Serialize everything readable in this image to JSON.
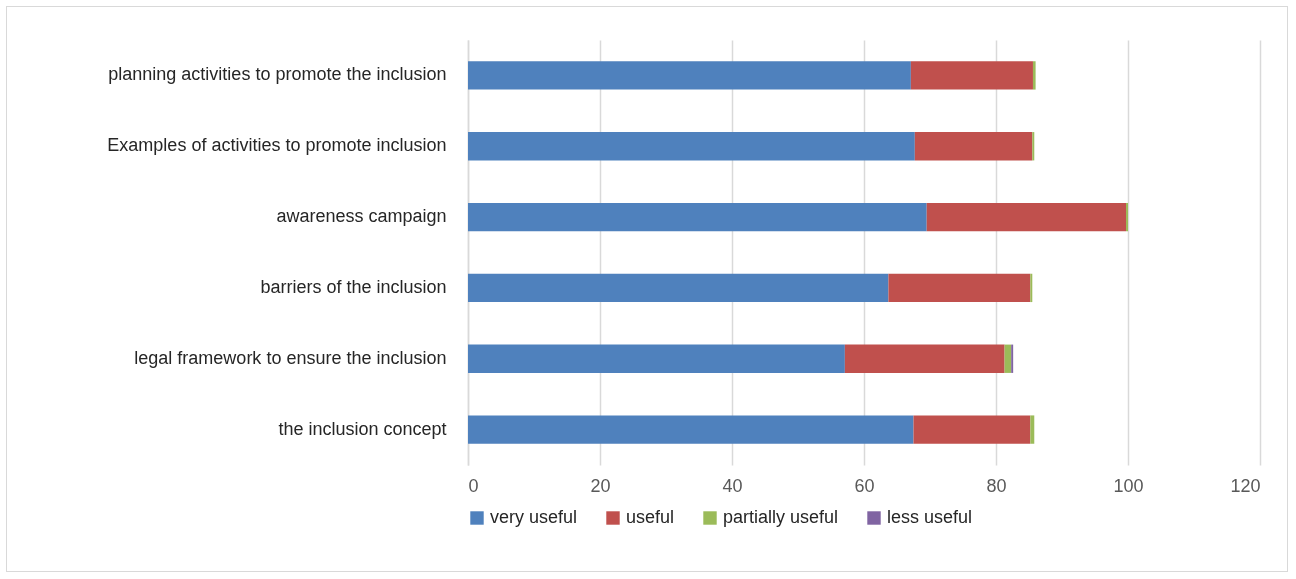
{
  "chart_data": {
    "type": "bar",
    "orientation": "horizontal",
    "stacked": true,
    "categories": [
      "planning activities to promote the inclusion",
      "Examples of activities to promote inclusion",
      "awareness campaign",
      "barriers of the inclusion",
      "legal framework to ensure the inclusion",
      "the inclusion concept"
    ],
    "series": [
      {
        "name": "very useful",
        "color": "#4f81bd",
        "values": [
          67.1,
          67.7,
          69.5,
          63.7,
          57.1,
          67.5
        ]
      },
      {
        "name": "useful",
        "color": "#c0504d",
        "values": [
          18.5,
          17.8,
          30.2,
          21.5,
          24.2,
          17.7
        ]
      },
      {
        "name": "partially useful",
        "color": "#9bbb59",
        "values": [
          0.4,
          0.3,
          0.3,
          0.3,
          1.0,
          0.6
        ]
      },
      {
        "name": "less useful",
        "color": "#8064a2",
        "values": [
          0,
          0,
          0,
          0,
          0.3,
          0
        ]
      }
    ],
    "xlim": [
      0,
      120
    ],
    "xticks": [
      0,
      20,
      40,
      60,
      80,
      100,
      120
    ],
    "grid": "x",
    "legend": "bottom"
  }
}
